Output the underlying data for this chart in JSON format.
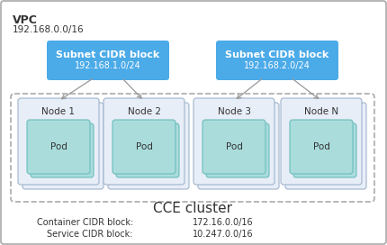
{
  "vpc_label": "VPC",
  "vpc_cidr": "192.168.0.0/16",
  "subnet1_label": "Subnet CIDR block",
  "subnet1_cidr": "192.168.1.0/24",
  "subnet2_label": "Subnet CIDR block",
  "subnet2_cidr": "192.168.2.0/24",
  "nodes": [
    "Node 1",
    "Node 2",
    "Node 3",
    "Node N"
  ],
  "pod_label": "Pod",
  "cluster_label": "CCE cluster",
  "container_cidr_label": "Container CIDR block:",
  "container_cidr_value": "172.16.0.0/16",
  "service_cidr_label": "Service CIDR block:",
  "service_cidr_value": "10.247.0.0/16",
  "subnet_bg": "#4baae8",
  "node_bg": "#e8eef8",
  "node_border": "#a0b4cc",
  "pod_bg": "#aadcdc",
  "pod_border": "#6bbcbc",
  "vpc_border": "#aaaaaa",
  "cluster_border": "#aaaaaa",
  "white": "#ffffff",
  "dark_text": "#333333",
  "arrow_color": "#999999",
  "fig_bg": "#ffffff",
  "vpc_bg": "#ffffff"
}
